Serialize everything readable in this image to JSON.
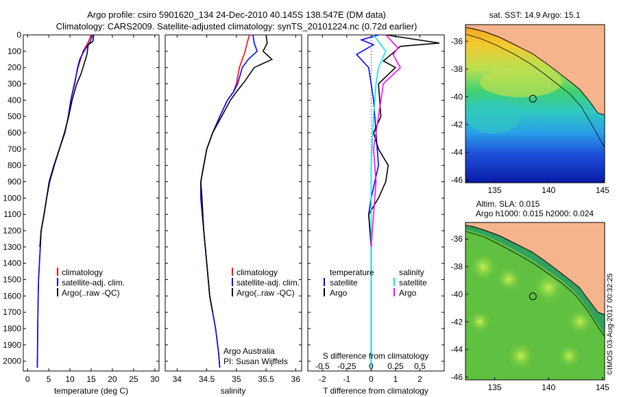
{
  "header": {
    "line1": "Argo profile: csiro 5901620_134 24-Dec-2010 40.145S 138.547E (DM data)",
    "line2": "Climatology: CARS2009. Satellite-adjusted climatology: synTS_20101224.nc (0.72d earlier)"
  },
  "colors": {
    "climatology": "#ff0000",
    "satellite": "#0000ff",
    "argo": "#000000",
    "salinity_satellite": "#00e5ee",
    "salinity_argo": "#ff00ff",
    "land": "#f5b48c"
  },
  "chart_data": [
    {
      "type": "line",
      "xlabel": "temperature (deg C)",
      "ylabel": "",
      "xlim": [
        -1,
        31
      ],
      "ylim": [
        2060,
        0
      ],
      "x_ticks": [
        0,
        5,
        10,
        15,
        20,
        25,
        30
      ],
      "y_ticks": [
        0,
        100,
        200,
        300,
        400,
        500,
        600,
        700,
        800,
        900,
        1000,
        1100,
        1200,
        1300,
        1400,
        1500,
        1600,
        1700,
        1800,
        1900,
        2000
      ],
      "legend": [
        "climatology",
        "satellite-adj. clim.",
        "Argo(..raw -QC)"
      ],
      "legend_position": "lower-center",
      "series": [
        {
          "name": "climatology",
          "x": [
            15.0,
            14.2,
            13.1,
            12.5,
            11.9,
            11.0,
            10.2,
            9.6,
            8.8,
            7.5,
            6.2,
            5.1,
            4.5,
            3.9,
            3.2,
            3.0,
            2.8,
            2.6,
            2.5,
            2.4,
            2.35,
            2.3
          ],
          "y": [
            0,
            50,
            100,
            150,
            200,
            300,
            400,
            500,
            600,
            700,
            800,
            900,
            1000,
            1100,
            1200,
            1300,
            1400,
            1500,
            1600,
            1800,
            1950,
            2040
          ]
        },
        {
          "name": "satellite-adj. clim.",
          "x": [
            15.3,
            14.8,
            13.3,
            12.3,
            11.8,
            11.1,
            10.2,
            9.6,
            8.8,
            7.5,
            6.2,
            5.1,
            4.5,
            3.9,
            3.2,
            3.0,
            2.8,
            2.6,
            2.5,
            2.4,
            2.35,
            2.3
          ],
          "y": [
            0,
            40,
            100,
            150,
            200,
            300,
            400,
            500,
            600,
            700,
            800,
            900,
            1000,
            1100,
            1200,
            1300,
            1400,
            1500,
            1600,
            1800,
            1950,
            2040
          ]
        },
        {
          "name": "Argo(..raw -QC)",
          "x": [
            15.6,
            15.4,
            14.3,
            14.0,
            13.3,
            12.6,
            11.6,
            10.5,
            9.7,
            8.7,
            7.5,
            6.3,
            5.2,
            4.5,
            3.9,
            3.2,
            2.9
          ],
          "y": [
            0,
            40,
            60,
            120,
            180,
            240,
            300,
            400,
            500,
            600,
            700,
            800,
            900,
            1000,
            1100,
            1200,
            1300
          ]
        }
      ]
    },
    {
      "type": "line",
      "xlabel": "salinity",
      "ylabel": "",
      "xlim": [
        33.8,
        36.1
      ],
      "ylim": [
        2060,
        0
      ],
      "x_ticks": [
        34,
        34.5,
        35,
        35.5,
        36
      ],
      "legend": [
        "climatology",
        "satellite-adj. clim.",
        "Argo(..raw -QC)"
      ],
      "legend_position": "lower-center",
      "annotations": [
        "Argo Australia",
        "PI: Susan Wijffels"
      ],
      "series": [
        {
          "name": "climatology",
          "x": [
            35.22,
            35.18,
            35.15,
            35.1,
            35.05,
            35.0,
            34.95,
            34.85,
            34.72,
            34.6,
            34.5,
            34.45,
            34.4,
            34.4,
            34.45,
            34.5,
            34.55,
            34.6,
            34.65,
            34.7,
            34.72
          ],
          "y": [
            0,
            50,
            100,
            150,
            200,
            300,
            350,
            400,
            500,
            600,
            700,
            800,
            900,
            1000,
            1200,
            1400,
            1600,
            1700,
            1800,
            1950,
            2040
          ]
        },
        {
          "name": "satellite-adj. clim.",
          "x": [
            35.28,
            35.3,
            35.35,
            35.2,
            35.1,
            35.02,
            34.95,
            34.85,
            34.72,
            34.6,
            34.5,
            34.45,
            34.4,
            34.4,
            34.45,
            34.5,
            34.55,
            34.6,
            34.65,
            34.7,
            34.72
          ],
          "y": [
            0,
            50,
            100,
            150,
            200,
            300,
            350,
            400,
            500,
            600,
            700,
            800,
            900,
            1000,
            1200,
            1400,
            1600,
            1700,
            1800,
            1950,
            2040
          ]
        },
        {
          "name": "Argo(..raw -QC)",
          "x": [
            35.5,
            35.52,
            35.45,
            35.6,
            35.3,
            35.15,
            35.0,
            34.9,
            34.75,
            34.6,
            34.5,
            34.45,
            34.4,
            34.42,
            34.45,
            34.5,
            34.55,
            34.6
          ],
          "y": [
            0,
            50,
            100,
            150,
            200,
            280,
            350,
            400,
            500,
            600,
            700,
            800,
            900,
            1000,
            1200,
            1400,
            1600,
            1700
          ]
        }
      ]
    },
    {
      "type": "line",
      "xlabel": "T difference from climatology",
      "xlabel_top": "S difference from climatology",
      "xlim": [
        -2.6,
        3.0
      ],
      "ylim": [
        2060,
        0
      ],
      "x_ticks": [
        -2,
        -1,
        0,
        1,
        2
      ],
      "x_ticks_s_labels": [
        "-0.5",
        "-0.25",
        "0",
        "0.25",
        "0.5"
      ],
      "x_ticks_s_pos": [
        -2,
        -1,
        0,
        1,
        2
      ],
      "legend_titles": [
        "temperature",
        "salinity"
      ],
      "legend": [
        "satellite",
        "Argo",
        "satellite",
        "Argo"
      ],
      "legend_position": "lower-center",
      "series": [
        {
          "name": "satellite",
          "x": [
            0.3,
            -0.4,
            0.1,
            -0.6,
            -0.1,
            0.0,
            0.1,
            0.2,
            0.3,
            0.0,
            -0.1,
            0.0,
            0.0,
            0.0,
            0.0
          ],
          "y": [
            0,
            30,
            60,
            120,
            200,
            300,
            400,
            600,
            800,
            1000,
            1100,
            1300,
            1500,
            1800,
            2040
          ]
        },
        {
          "name": "Argo",
          "x": [
            0.6,
            2.8,
            1.2,
            0.9,
            0.5,
            1.0,
            0.3,
            0.4,
            0.1,
            0.3,
            0.7,
            0.6,
            0.3,
            -0.1,
            0.0
          ],
          "y": [
            0,
            50,
            70,
            110,
            160,
            200,
            300,
            500,
            600,
            700,
            800,
            900,
            1000,
            1100,
            1300
          ]
        },
        {
          "name": "satellite",
          "x": [
            0.1,
            0.6,
            0.3,
            0.2,
            0.1,
            0.0,
            0.0,
            0.0,
            0.0,
            0.0
          ],
          "y": [
            0,
            100,
            200,
            300,
            500,
            800,
            1100,
            1400,
            1800,
            2040
          ]
        },
        {
          "name": "Argo",
          "x": [
            0.6,
            1.1,
            0.9,
            1.2,
            0.5,
            0.3,
            0.1,
            0.2,
            0.1,
            0.0
          ],
          "y": [
            0,
            80,
            120,
            200,
            300,
            500,
            700,
            900,
            1100,
            1300
          ]
        }
      ]
    },
    {
      "type": "heatmap",
      "title": "sat. SST: 14.9 Argo: 15.1",
      "xlim": [
        132.3,
        145.2
      ],
      "ylim": [
        -46.2,
        -34.8
      ],
      "x_ticks": [
        135,
        140,
        145
      ],
      "y_ticks": [
        -36,
        -38,
        -40,
        -42,
        -44,
        -46
      ],
      "marker": {
        "lon": 138.547,
        "lat": -40.145
      }
    },
    {
      "type": "heatmap",
      "title_line1": "Altim. SLA: 0.015",
      "title_line2": "Argo h1000: 0.015 h2000: 0.024",
      "xlim": [
        132.3,
        145.2
      ],
      "ylim": [
        -46.2,
        -34.8
      ],
      "x_ticks": [
        135,
        140,
        145
      ],
      "y_ticks": [
        -36,
        -38,
        -40,
        -42,
        -44,
        -46
      ],
      "marker": {
        "lon": 138.547,
        "lat": -40.145
      }
    }
  ],
  "watermark": "©IMOS 03-Aug-2017 00:32:25"
}
